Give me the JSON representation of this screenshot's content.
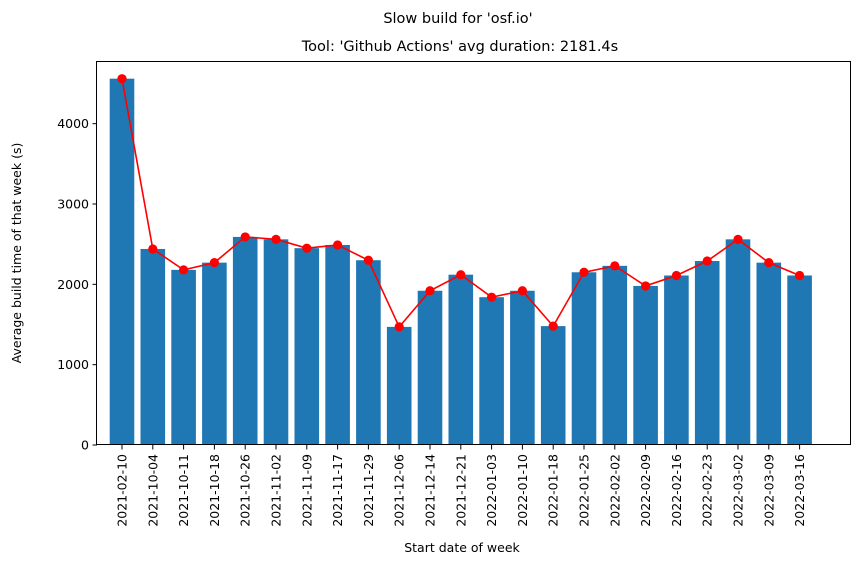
{
  "chart_data": {
    "type": "bar",
    "suptitle": "Slow build for 'osf.io'",
    "title": "Tool: 'Github Actions' avg duration: 2181.4s",
    "xlabel": "Start date of week",
    "ylabel": "Average build time of that week (s)",
    "categories": [
      "2021-02-10",
      "2021-10-04",
      "2021-10-11",
      "2021-10-18",
      "2021-10-26",
      "2021-11-02",
      "2021-11-09",
      "2021-11-17",
      "2021-11-29",
      "2021-12-06",
      "2021-12-14",
      "2021-12-21",
      "2022-01-03",
      "2022-01-10",
      "2022-01-18",
      "2022-01-25",
      "2022-02-02",
      "2022-02-09",
      "2022-02-16",
      "2022-02-23",
      "2022-03-02",
      "2022-03-09",
      "2022-03-16"
    ],
    "values": [
      4560,
      2440,
      2180,
      2270,
      2590,
      2560,
      2450,
      2490,
      2300,
      1470,
      1920,
      2120,
      1840,
      1920,
      1480,
      2150,
      2230,
      1980,
      2110,
      2290,
      2560,
      2270,
      2110
    ],
    "yticks": [
      0,
      1000,
      2000,
      3000,
      4000
    ],
    "ylim": [
      0,
      4780
    ],
    "bar_color": "#1f77b4",
    "line_color": "#ff0000",
    "grid": false
  }
}
